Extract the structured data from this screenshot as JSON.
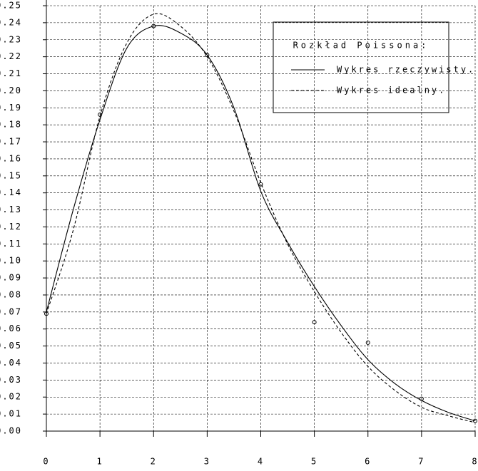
{
  "chart_data": {
    "type": "line",
    "legend_title": "Rozkład Poissona:",
    "legend": "upper-right",
    "grid": true,
    "xlim": [
      0,
      8
    ],
    "xticks": [
      0,
      1,
      2,
      3,
      4,
      5,
      6,
      7,
      8
    ],
    "ylim": [
      0,
      0.25
    ],
    "yticks": [
      {
        "value": 0,
        "label": "0.00"
      },
      0.01,
      0.02,
      0.03,
      0.04,
      0.05,
      0.06,
      0.07,
      0.08,
      0.09,
      {
        "value": 0.1,
        "label": "0.10"
      },
      0.11,
      0.12,
      0.13,
      0.14,
      0.15,
      0.16,
      0.17,
      0.18,
      0.19,
      {
        "value": 0.2,
        "label": "0.20"
      },
      0.21,
      0.22,
      0.23,
      0.24,
      0.25
    ],
    "series": [
      {
        "name": "Wykres rzeczywisty.",
        "color": "#000000",
        "style": "solid",
        "x": [
          0,
          0.5,
          1,
          1.5,
          2,
          2.5,
          3,
          3.5,
          4,
          4.5,
          5,
          5.5,
          6,
          6.5,
          7,
          7.5,
          8
        ],
        "values": [
          0.07,
          0.13,
          0.183,
          0.225,
          0.238,
          0.234,
          0.221,
          0.19,
          0.141,
          0.111,
          0.085,
          0.062,
          0.042,
          0.028,
          0.018,
          0.011,
          0.006
        ]
      },
      {
        "name": "Wykres idealny.",
        "color": "#000000",
        "style": "dashed",
        "x": [
          0,
          0.5,
          1,
          1.5,
          2,
          2.5,
          3,
          3.5,
          4,
          4.5,
          5,
          5.5,
          6,
          6.5,
          7,
          7.5,
          8
        ],
        "values": [
          0.069,
          0.118,
          0.185,
          0.228,
          0.245,
          0.238,
          0.22,
          0.188,
          0.146,
          0.11,
          0.082,
          0.058,
          0.038,
          0.024,
          0.014,
          0.009,
          0.005
        ]
      }
    ],
    "points": {
      "color": "#000000",
      "x": [
        0,
        1,
        2,
        3,
        4,
        5,
        6,
        7,
        8
      ],
      "values": [
        0.069,
        0.186,
        0.238,
        0.221,
        0.145,
        0.064,
        0.052,
        0.019,
        0.006
      ]
    }
  }
}
